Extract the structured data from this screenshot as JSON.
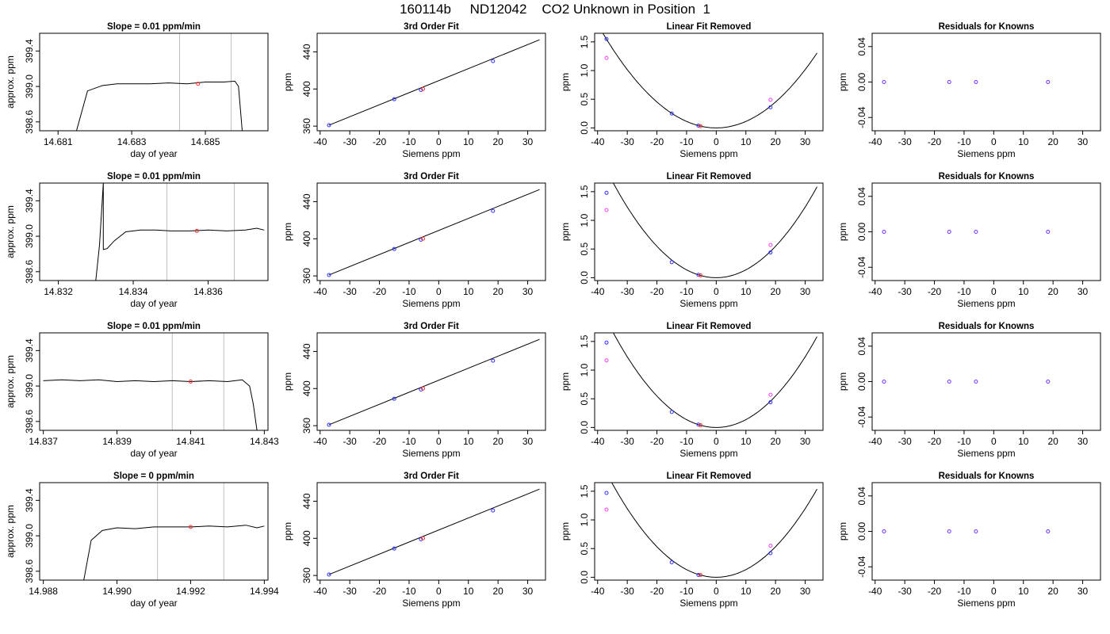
{
  "page_title": "160114b     ND12042    CO2 Unknown in Position  1",
  "chart_data": [
    {
      "type": "line",
      "row": 1,
      "title": "Slope =  0.01  ppm/min",
      "xlabel": "day of year",
      "ylabel": "approx. ppm",
      "xlim": [
        14.6805,
        14.6867
      ],
      "ylim": [
        398.5,
        399.6
      ],
      "xticks": [
        14.681,
        14.683,
        14.685
      ],
      "xtick_labels": [
        "14.681",
        "14.683",
        "14.685"
      ],
      "yticks": [
        398.6,
        399.0,
        399.4
      ],
      "ytick_labels": [
        "398.6",
        "399.0",
        "399.4"
      ],
      "vlines": [
        14.6843,
        14.6857
      ],
      "marker": {
        "x": 14.6848,
        "y": 399.03
      },
      "x": [
        14.6815,
        14.6818,
        14.6822,
        14.6826,
        14.683,
        14.6835,
        14.684,
        14.6845,
        14.685,
        14.6855,
        14.6858,
        14.6859,
        14.686
      ],
      "y": [
        398.5,
        398.95,
        399.01,
        399.03,
        399.03,
        399.03,
        399.04,
        399.03,
        399.05,
        399.05,
        399.06,
        399.0,
        398.5
      ]
    },
    {
      "type": "scatter",
      "row": 1,
      "title": "3rd Order Fit",
      "xlabel": "Siemens ppm",
      "ylabel": "ppm",
      "xlim": [
        -41,
        36
      ],
      "ylim": [
        355,
        460
      ],
      "xticks": [
        -40,
        -30,
        -20,
        -10,
        0,
        10,
        20,
        30
      ],
      "xtick_labels": [
        "-40",
        "-30",
        "-20",
        "-10",
        "0",
        "10",
        "20",
        "30"
      ],
      "yticks": [
        360,
        400,
        440
      ],
      "ytick_labels": [
        "360",
        "400",
        "440"
      ],
      "line": {
        "x": [
          -37,
          34
        ],
        "y": [
          361,
          453
        ]
      },
      "series": [
        {
          "color": "#3030ff",
          "x": [
            -37,
            -15,
            -6,
            18.3
          ],
          "y": [
            361,
            389,
            399,
            430
          ]
        },
        {
          "color": "#ff3030",
          "x": [
            -5.3
          ],
          "y": [
            400
          ]
        }
      ]
    },
    {
      "type": "scatter",
      "row": 1,
      "title": "Linear Fit Removed",
      "xlabel": "Siemens ppm",
      "ylabel": "ppm",
      "xlim": [
        -41,
        36
      ],
      "ylim": [
        -0.05,
        1.65
      ],
      "xticks": [
        -40,
        -30,
        -20,
        -10,
        0,
        10,
        20,
        30
      ],
      "xtick_labels": [
        "-40",
        "-30",
        "-20",
        "-10",
        "0",
        "10",
        "20",
        "30"
      ],
      "yticks": [
        0,
        0.5,
        1.0,
        1.5
      ],
      "ytick_labels": [
        "0.0",
        "0.5",
        "1.0",
        "1.5"
      ],
      "curve_a": 0.00113,
      "curve_xmax": 34,
      "series": [
        {
          "color": "#3030ff",
          "x": [
            -37,
            -15,
            -6,
            18.3
          ],
          "y": [
            1.55,
            0.25,
            0.04,
            0.36
          ]
        },
        {
          "color": "#ee44ee",
          "x": [
            -37,
            18.3
          ],
          "y": [
            1.22,
            0.49
          ]
        },
        {
          "color": "#ff3030",
          "x": [
            -5.3
          ],
          "y": [
            0.03
          ]
        }
      ]
    },
    {
      "type": "scatter",
      "row": 1,
      "title": "Residuals for Knowns",
      "xlabel": "Siemens ppm",
      "ylabel": "ppm",
      "xlim": [
        -41,
        36
      ],
      "ylim": [
        -0.055,
        0.055
      ],
      "xticks": [
        -40,
        -30,
        -20,
        -10,
        0,
        10,
        20,
        30
      ],
      "xtick_labels": [
        "-40",
        "-30",
        "-20",
        "-10",
        "0",
        "10",
        "20",
        "30"
      ],
      "yticks": [
        -0.04,
        0,
        0.04
      ],
      "ytick_labels": [
        "-0.04",
        "0.00",
        "0.04"
      ],
      "series": [
        {
          "color": "#7030ff",
          "x": [
            -37,
            -15,
            -6,
            18.3
          ],
          "y": [
            0,
            0,
            0,
            0
          ]
        }
      ]
    },
    {
      "type": "line",
      "row": 2,
      "title": "Slope =  0.01  ppm/min",
      "xlabel": "day of year",
      "ylabel": "approx. ppm",
      "xlim": [
        14.8315,
        14.8376
      ],
      "ylim": [
        398.5,
        399.6
      ],
      "xticks": [
        14.832,
        14.834,
        14.836
      ],
      "xtick_labels": [
        "14.832",
        "14.834",
        "14.836"
      ],
      "yticks": [
        398.6,
        399.0,
        399.4
      ],
      "ytick_labels": [
        "398.6",
        "399.0",
        "399.4"
      ],
      "vlines": [
        14.8349,
        14.8367
      ],
      "marker": {
        "x": 14.8357,
        "y": 399.06
      },
      "x": [
        14.833,
        14.8331,
        14.8332,
        14.8332,
        14.8333,
        14.8335,
        14.8338,
        14.8342,
        14.8346,
        14.835,
        14.8355,
        14.836,
        14.8365,
        14.837,
        14.8373,
        14.8375
      ],
      "y": [
        398.5,
        398.9,
        399.6,
        398.85,
        398.86,
        398.95,
        399.05,
        399.07,
        399.07,
        399.06,
        399.06,
        399.07,
        399.06,
        399.07,
        399.09,
        399.07
      ]
    },
    {
      "type": "scatter",
      "row": 2,
      "title": "3rd Order Fit",
      "xlabel": "Siemens ppm",
      "ylabel": "ppm",
      "xlim": [
        -41,
        36
      ],
      "ylim": [
        355,
        460
      ],
      "xticks": [
        -40,
        -30,
        -20,
        -10,
        0,
        10,
        20,
        30
      ],
      "xtick_labels": [
        "-40",
        "-30",
        "-20",
        "-10",
        "0",
        "10",
        "20",
        "30"
      ],
      "yticks": [
        360,
        400,
        440
      ],
      "ytick_labels": [
        "360",
        "400",
        "440"
      ],
      "line": {
        "x": [
          -37,
          34
        ],
        "y": [
          361,
          453
        ]
      },
      "series": [
        {
          "color": "#3030ff",
          "x": [
            -37,
            -15,
            -6,
            18.3
          ],
          "y": [
            361,
            389,
            399,
            430
          ]
        },
        {
          "color": "#ff3030",
          "x": [
            -5.3
          ],
          "y": [
            400
          ]
        }
      ]
    },
    {
      "type": "scatter",
      "row": 2,
      "title": "Linear Fit Removed",
      "xlabel": "Siemens ppm",
      "ylabel": "ppm",
      "xlim": [
        -41,
        36
      ],
      "ylim": [
        -0.05,
        1.65
      ],
      "xticks": [
        -40,
        -30,
        -20,
        -10,
        0,
        10,
        20,
        30
      ],
      "xtick_labels": [
        "-40",
        "-30",
        "-20",
        "-10",
        "0",
        "10",
        "20",
        "30"
      ],
      "yticks": [
        0,
        0.5,
        1.0,
        1.5
      ],
      "ytick_labels": [
        "0.0",
        "0.5",
        "1.0",
        "1.5"
      ],
      "curve_a": 0.00137,
      "curve_xmax": 34,
      "series": [
        {
          "color": "#3030ff",
          "x": [
            -37,
            -15,
            -6,
            18.3
          ],
          "y": [
            1.48,
            0.27,
            0.05,
            0.44
          ]
        },
        {
          "color": "#ee44ee",
          "x": [
            -37,
            18.3
          ],
          "y": [
            1.18,
            0.57
          ]
        },
        {
          "color": "#ff3030",
          "x": [
            -5.3
          ],
          "y": [
            0.04
          ]
        }
      ]
    },
    {
      "type": "scatter",
      "row": 2,
      "title": "Residuals for Knowns",
      "xlabel": "Siemens ppm",
      "ylabel": "ppm",
      "xlim": [
        -41,
        36
      ],
      "ylim": [
        -0.055,
        0.055
      ],
      "xticks": [
        -40,
        -30,
        -20,
        -10,
        0,
        10,
        20,
        30
      ],
      "xtick_labels": [
        "-40",
        "-30",
        "-20",
        "-10",
        "0",
        "10",
        "20",
        "30"
      ],
      "yticks": [
        -0.04,
        0,
        0.04
      ],
      "ytick_labels": [
        "-0.04",
        "0.00",
        "0.04"
      ],
      "series": [
        {
          "color": "#7030ff",
          "x": [
            -37,
            -15,
            -6,
            18.3
          ],
          "y": [
            0,
            0,
            0,
            0
          ]
        }
      ]
    },
    {
      "type": "line",
      "row": 3,
      "title": "Slope =  0.01  ppm/min",
      "xlabel": "day of year",
      "ylabel": "approx. ppm",
      "xlim": [
        14.8369,
        14.8431
      ],
      "ylim": [
        398.5,
        399.6
      ],
      "xticks": [
        14.837,
        14.839,
        14.841,
        14.843
      ],
      "xtick_labels": [
        "14.837",
        "14.839",
        "14.841",
        "14.843"
      ],
      "yticks": [
        398.6,
        399.0,
        399.4
      ],
      "ytick_labels": [
        "398.6",
        "399.0",
        "399.4"
      ],
      "vlines": [
        14.8405,
        14.8419
      ],
      "marker": {
        "x": 14.841,
        "y": 399.05
      },
      "x": [
        14.837,
        14.8375,
        14.838,
        14.8385,
        14.839,
        14.8395,
        14.84,
        14.8405,
        14.841,
        14.8415,
        14.842,
        14.8424,
        14.8426,
        14.8427,
        14.8428
      ],
      "y": [
        399.06,
        399.07,
        399.06,
        399.07,
        399.05,
        399.06,
        399.05,
        399.06,
        399.05,
        399.06,
        399.05,
        399.07,
        399.0,
        398.8,
        398.5
      ]
    },
    {
      "type": "scatter",
      "row": 3,
      "title": "3rd Order Fit",
      "xlabel": "Siemens ppm",
      "ylabel": "ppm",
      "xlim": [
        -41,
        36
      ],
      "ylim": [
        355,
        460
      ],
      "xticks": [
        -40,
        -30,
        -20,
        -10,
        0,
        10,
        20,
        30
      ],
      "xtick_labels": [
        "-40",
        "-30",
        "-20",
        "-10",
        "0",
        "10",
        "20",
        "30"
      ],
      "yticks": [
        360,
        400,
        440
      ],
      "ytick_labels": [
        "360",
        "400",
        "440"
      ],
      "line": {
        "x": [
          -37,
          34
        ],
        "y": [
          361,
          453
        ]
      },
      "series": [
        {
          "color": "#3030ff",
          "x": [
            -37,
            -15,
            -6,
            18.3
          ],
          "y": [
            361,
            389,
            399,
            430
          ]
        },
        {
          "color": "#ff3030",
          "x": [
            -5.3
          ],
          "y": [
            400
          ]
        }
      ]
    },
    {
      "type": "scatter",
      "row": 3,
      "title": "Linear Fit Removed",
      "xlabel": "Siemens ppm",
      "ylabel": "ppm",
      "xlim": [
        -41,
        36
      ],
      "ylim": [
        -0.05,
        1.65
      ],
      "xticks": [
        -40,
        -30,
        -20,
        -10,
        0,
        10,
        20,
        30
      ],
      "xtick_labels": [
        "-40",
        "-30",
        "-20",
        "-10",
        "0",
        "10",
        "20",
        "30"
      ],
      "yticks": [
        0,
        0.5,
        1.0,
        1.5
      ],
      "ytick_labels": [
        "0.0",
        "0.5",
        "1.0",
        "1.5"
      ],
      "curve_a": 0.00137,
      "curve_xmax": 34,
      "series": [
        {
          "color": "#3030ff",
          "x": [
            -37,
            -15,
            -6,
            18.3
          ],
          "y": [
            1.48,
            0.27,
            0.05,
            0.44
          ]
        },
        {
          "color": "#ee44ee",
          "x": [
            -37,
            18.3
          ],
          "y": [
            1.17,
            0.57
          ]
        },
        {
          "color": "#ff3030",
          "x": [
            -5.3
          ],
          "y": [
            0.04
          ]
        }
      ]
    },
    {
      "type": "scatter",
      "row": 3,
      "title": "Residuals for Knowns",
      "xlabel": "Siemens ppm",
      "ylabel": "ppm",
      "xlim": [
        -41,
        36
      ],
      "ylim": [
        -0.055,
        0.055
      ],
      "xticks": [
        -40,
        -30,
        -20,
        -10,
        0,
        10,
        20,
        30
      ],
      "xtick_labels": [
        "-40",
        "-30",
        "-20",
        "-10",
        "0",
        "10",
        "20",
        "30"
      ],
      "yticks": [
        -0.04,
        0,
        0.04
      ],
      "ytick_labels": [
        "-0.04",
        "0.00",
        "0.04"
      ],
      "series": [
        {
          "color": "#7030ff",
          "x": [
            -37,
            -15,
            -6,
            18.3
          ],
          "y": [
            0,
            0,
            0,
            0
          ]
        }
      ]
    },
    {
      "type": "line",
      "row": 4,
      "title": "Slope =  0  ppm/min",
      "xlabel": "day of year",
      "ylabel": "approx. ppm",
      "xlim": [
        14.9879,
        14.9941
      ],
      "ylim": [
        398.5,
        399.6
      ],
      "xticks": [
        14.988,
        14.99,
        14.992,
        14.994
      ],
      "xtick_labels": [
        "14.988",
        "14.990",
        "14.992",
        "14.994"
      ],
      "yticks": [
        398.6,
        399.0,
        399.4
      ],
      "ytick_labels": [
        "398.6",
        "399.0",
        "399.4"
      ],
      "vlines": [
        14.9911,
        14.9929
      ],
      "marker": {
        "x": 14.992,
        "y": 399.1
      },
      "x": [
        14.9891,
        14.9893,
        14.9896,
        14.99,
        14.9905,
        14.991,
        14.9915,
        14.992,
        14.9925,
        14.993,
        14.9935,
        14.9938,
        14.994
      ],
      "y": [
        398.5,
        398.95,
        399.06,
        399.09,
        399.08,
        399.1,
        399.1,
        399.1,
        399.11,
        399.1,
        399.12,
        399.09,
        399.11
      ]
    },
    {
      "type": "scatter",
      "row": 4,
      "title": "3rd Order Fit",
      "xlabel": "Siemens ppm",
      "ylabel": "ppm",
      "xlim": [
        -41,
        36
      ],
      "ylim": [
        355,
        460
      ],
      "xticks": [
        -40,
        -30,
        -20,
        -10,
        0,
        10,
        20,
        30
      ],
      "xtick_labels": [
        "-40",
        "-30",
        "-20",
        "-10",
        "0",
        "10",
        "20",
        "30"
      ],
      "yticks": [
        360,
        400,
        440
      ],
      "ytick_labels": [
        "360",
        "400",
        "440"
      ],
      "line": {
        "x": [
          -37,
          34
        ],
        "y": [
          361,
          453
        ]
      },
      "series": [
        {
          "color": "#3030ff",
          "x": [
            -37,
            -15,
            -6,
            18.3
          ],
          "y": [
            361,
            389,
            399,
            430
          ]
        },
        {
          "color": "#ff3030",
          "x": [
            -5.3
          ],
          "y": [
            400
          ]
        }
      ]
    },
    {
      "type": "scatter",
      "row": 4,
      "title": "Linear Fit Removed",
      "xlabel": "Siemens ppm",
      "ylabel": "ppm",
      "xlim": [
        -41,
        36
      ],
      "ylim": [
        -0.05,
        1.65
      ],
      "xticks": [
        -40,
        -30,
        -20,
        -10,
        0,
        10,
        20,
        30
      ],
      "xtick_labels": [
        "-40",
        "-30",
        "-20",
        "-10",
        "0",
        "10",
        "20",
        "30"
      ],
      "yticks": [
        0,
        0.5,
        1.0,
        1.5
      ],
      "ytick_labels": [
        "0.0",
        "0.5",
        "1.0",
        "1.5"
      ],
      "curve_a": 0.00133,
      "curve_xmax": 34,
      "series": [
        {
          "color": "#3030ff",
          "x": [
            -37,
            -15,
            -6,
            18.3
          ],
          "y": [
            1.47,
            0.26,
            0.04,
            0.42
          ]
        },
        {
          "color": "#ee44ee",
          "x": [
            -37,
            18.3
          ],
          "y": [
            1.18,
            0.55
          ]
        },
        {
          "color": "#ff3030",
          "x": [
            -5.3
          ],
          "y": [
            0.04
          ]
        }
      ]
    },
    {
      "type": "scatter",
      "row": 4,
      "title": "Residuals for Knowns",
      "xlabel": "Siemens ppm",
      "ylabel": "ppm",
      "xlim": [
        -41,
        36
      ],
      "ylim": [
        -0.055,
        0.055
      ],
      "xticks": [
        -40,
        -30,
        -20,
        -10,
        0,
        10,
        20,
        30
      ],
      "xtick_labels": [
        "-40",
        "-30",
        "-20",
        "-10",
        "0",
        "10",
        "20",
        "30"
      ],
      "yticks": [
        -0.04,
        0,
        0.04
      ],
      "ytick_labels": [
        "-0.04",
        "0.00",
        "0.04"
      ],
      "series": [
        {
          "color": "#7030ff",
          "x": [
            -37,
            -15,
            -6,
            18.3
          ],
          "y": [
            0,
            0,
            0,
            0
          ]
        }
      ]
    }
  ]
}
